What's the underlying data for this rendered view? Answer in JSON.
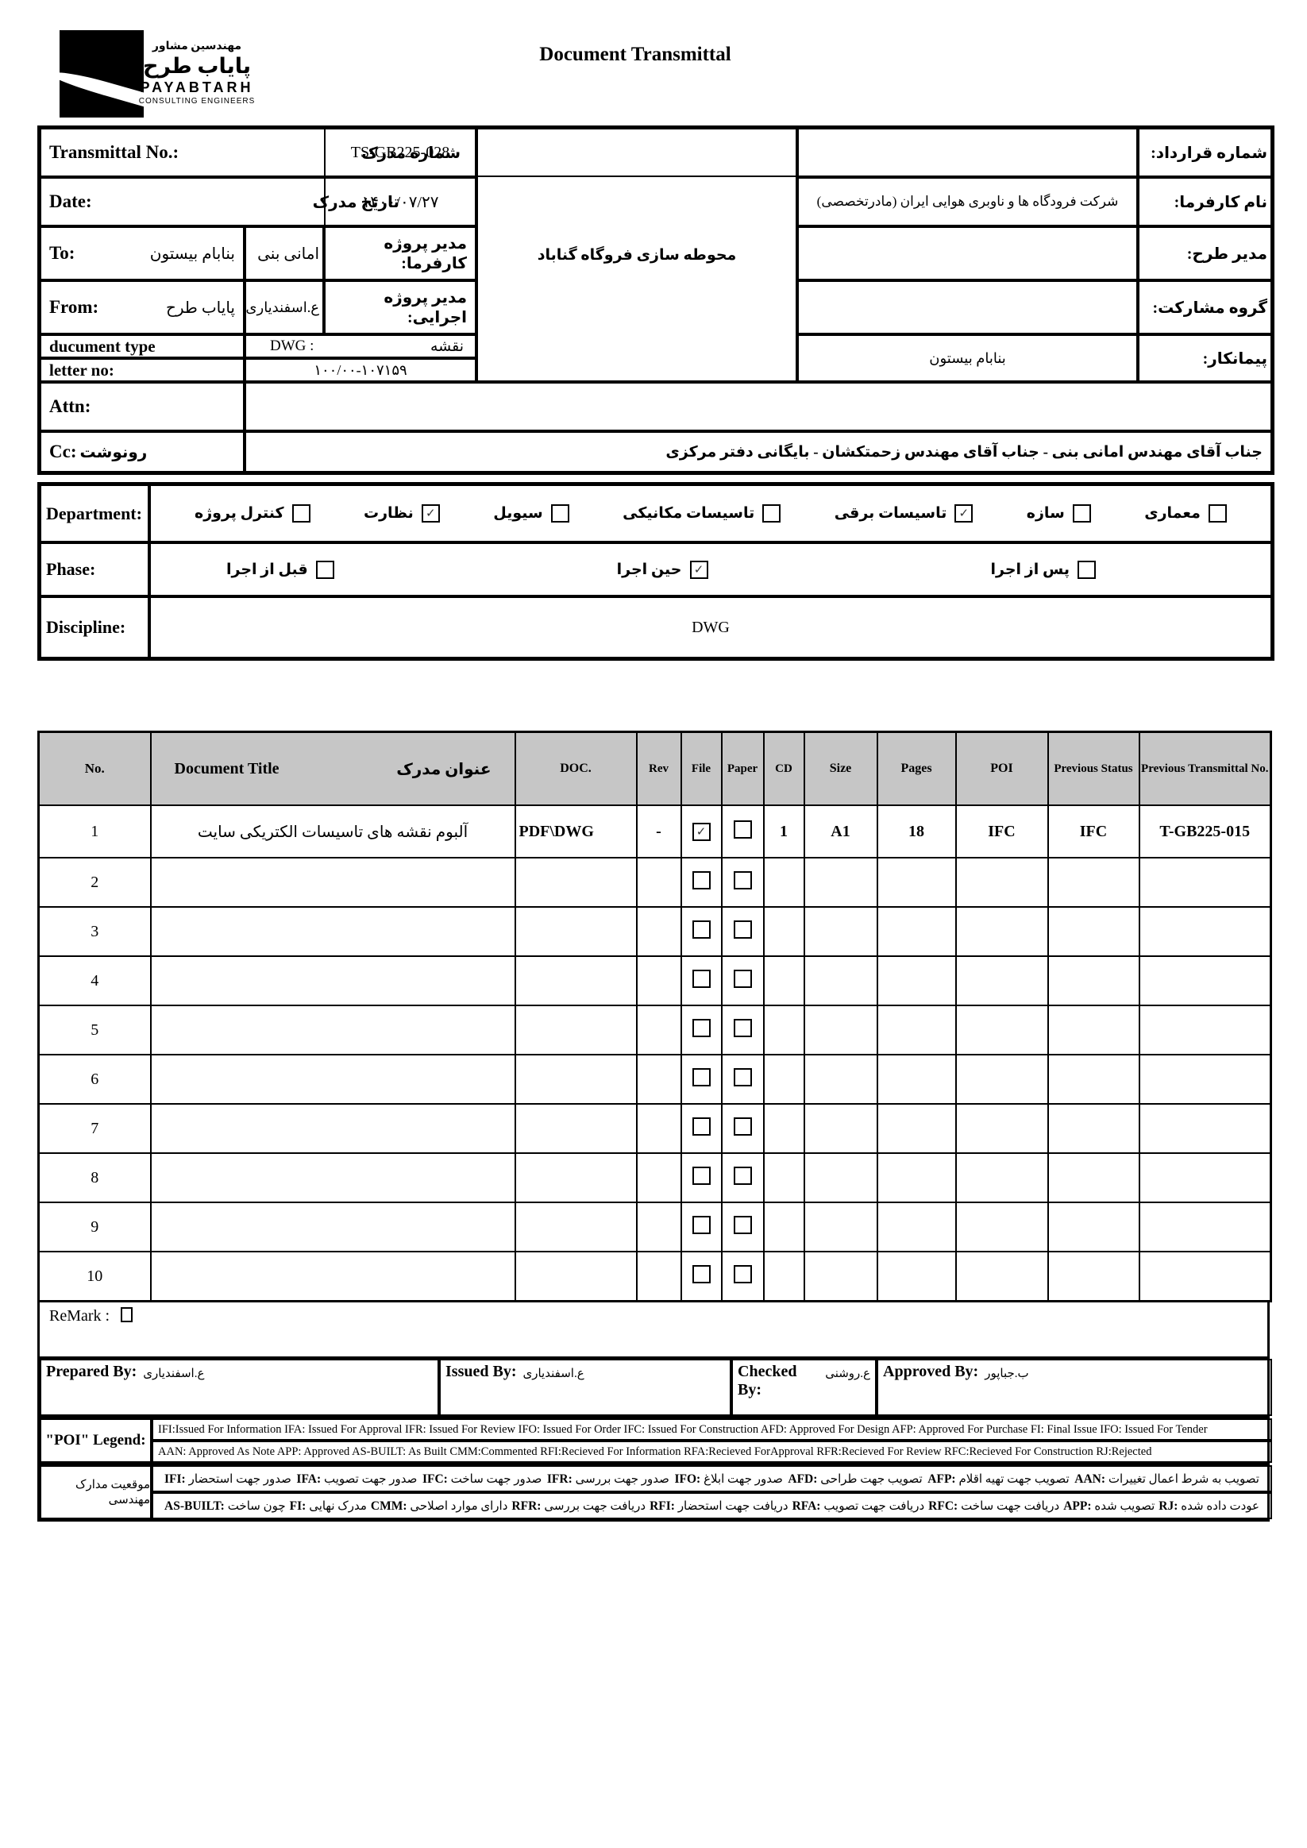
{
  "logo": {
    "fa_small": "مهندسین مشاور",
    "fa_big": "پایاب طرح",
    "en_big": "PAYABTARH",
    "en_small": "CONSULTING ENGINEERS"
  },
  "title": "Document Transmittal",
  "info": {
    "transmittal": {
      "label_en": "Transmittal No.:",
      "label_fa": "شماره مدرک",
      "value": "TS-GB225-028"
    },
    "date": {
      "label_en": "Date:",
      "label_fa": "تاریخ  مدرک",
      "value": "۱۴۰۰/۰۷/۲۷"
    },
    "to": {
      "label": "To:",
      "company": "بنابام بیستون",
      "person": "امانی بنی",
      "role_label": "مدیر پروژه کارفرما:"
    },
    "from": {
      "label": "From:",
      "company": "پایاب طرح",
      "person": "ع.اسفندیاری",
      "role_label": "مدیر پروژه اجرایی:"
    },
    "document_type": {
      "label": "ducument type",
      "value_latin": "DWG  :",
      "value_fa": "نقشه"
    },
    "letter_no": {
      "label": "letter no:",
      "value": "۱۰۰/۰۰-۱۰۷۱۵۹"
    },
    "attn": {
      "label": "Attn:",
      "value": ""
    },
    "cc": {
      "label_en": "Cc:",
      "label_fa": "رونوشت",
      "value": "جناب آقای مهندس امانی بنی  - جناب آقای مهندس زحمتکشان - بایگانی دفتر مرکزی"
    },
    "project": "محوطه سازی فروگاه گناباد",
    "contract": {
      "label": "شماره قرارداد:",
      "value": ""
    },
    "client": {
      "label": "نام کارفرما:",
      "value": "شرکت فرودگاه ها و ناوبری هوایی ایران (مادرتخصصی)"
    },
    "design_manager": {
      "label": "مدیر طرح:",
      "value": ""
    },
    "jv_group": {
      "label": "گروه مشارکت:",
      "value": ""
    },
    "contractor": {
      "label": "پیمانکار:",
      "value": "بنابام بیستون"
    }
  },
  "classification": {
    "department": {
      "label": "Department:",
      "options": [
        {
          "label": "کنترل پروژه",
          "checked": false
        },
        {
          "label": "نظارت",
          "checked": true
        },
        {
          "label": "سیویل",
          "checked": false
        },
        {
          "label": "تاسیسات مکانیکی",
          "checked": false
        },
        {
          "label": "تاسیسات برقی",
          "checked": true
        },
        {
          "label": "سازه",
          "checked": false
        },
        {
          "label": "معماری",
          "checked": false
        }
      ]
    },
    "phase": {
      "label": "Phase:",
      "options": [
        {
          "label": "قبل از اجرا",
          "checked": false
        },
        {
          "label": "حین اجرا",
          "checked": true
        },
        {
          "label": "پس از اجرا",
          "checked": false
        }
      ]
    },
    "discipline": {
      "label": "Discipline:",
      "value": "DWG"
    }
  },
  "doc_table": {
    "header": {
      "no": "No.",
      "title_en": "Document Title",
      "title_fa": "عنوان مدرک",
      "doc": "DOC.",
      "rev": "Rev",
      "file": "File",
      "paper": "Paper",
      "cd": "CD",
      "size": "Size",
      "pages": "Pages",
      "poi": "POI",
      "prev_status": "Previous Status",
      "prev_transmittal": "Previous Transmittal No."
    },
    "rows": [
      {
        "no": "1",
        "title": "آلبوم نقشه های تاسیسات الکتریکی سایت",
        "doc": "PDF\\DWG",
        "rev": "-",
        "file_checked": true,
        "paper_checked": false,
        "cd": "1",
        "size": "A1",
        "pages": "18",
        "poi": "IFC",
        "prev_status": "IFC",
        "prev_transmittal": "T-GB225-015"
      },
      {
        "no": "2",
        "title": "",
        "doc": "",
        "rev": "",
        "file_checked": false,
        "paper_checked": false,
        "cd": "",
        "size": "",
        "pages": "",
        "poi": "",
        "prev_status": "",
        "prev_transmittal": ""
      },
      {
        "no": "3",
        "title": "",
        "doc": "",
        "rev": "",
        "file_checked": false,
        "paper_checked": false,
        "cd": "",
        "size": "",
        "pages": "",
        "poi": "",
        "prev_status": "",
        "prev_transmittal": ""
      },
      {
        "no": "4",
        "title": "",
        "doc": "",
        "rev": "",
        "file_checked": false,
        "paper_checked": false,
        "cd": "",
        "size": "",
        "pages": "",
        "poi": "",
        "prev_status": "",
        "prev_transmittal": ""
      },
      {
        "no": "5",
        "title": "",
        "doc": "",
        "rev": "",
        "file_checked": false,
        "paper_checked": false,
        "cd": "",
        "size": "",
        "pages": "",
        "poi": "",
        "prev_status": "",
        "prev_transmittal": ""
      },
      {
        "no": "6",
        "title": "",
        "doc": "",
        "rev": "",
        "file_checked": false,
        "paper_checked": false,
        "cd": "",
        "size": "",
        "pages": "",
        "poi": "",
        "prev_status": "",
        "prev_transmittal": ""
      },
      {
        "no": "7",
        "title": "",
        "doc": "",
        "rev": "",
        "file_checked": false,
        "paper_checked": false,
        "cd": "",
        "size": "",
        "pages": "",
        "poi": "",
        "prev_status": "",
        "prev_transmittal": ""
      },
      {
        "no": "8",
        "title": "",
        "doc": "",
        "rev": "",
        "file_checked": false,
        "paper_checked": false,
        "cd": "",
        "size": "",
        "pages": "",
        "poi": "",
        "prev_status": "",
        "prev_transmittal": ""
      },
      {
        "no": "9",
        "title": "",
        "doc": "",
        "rev": "",
        "file_checked": false,
        "paper_checked": false,
        "cd": "",
        "size": "",
        "pages": "",
        "poi": "",
        "prev_status": "",
        "prev_transmittal": ""
      },
      {
        "no": "10",
        "title": "",
        "doc": "",
        "rev": "",
        "file_checked": false,
        "paper_checked": false,
        "cd": "",
        "size": "",
        "pages": "",
        "poi": "",
        "prev_status": "",
        "prev_transmittal": ""
      }
    ]
  },
  "remark_label": "ReMark :",
  "signatures": {
    "prepared": {
      "label": "Prepared By:",
      "value": "ع.اسفندیاری"
    },
    "issued": {
      "label": "Issued By:",
      "value": "ع.اسفندیاری"
    },
    "checked": {
      "label": "Checked By:",
      "value": "ع.روشنی"
    },
    "approved": {
      "label": "Approved By:",
      "value": "ب.جباپور"
    }
  },
  "poi_legend": {
    "label": "\"POI\" Legend:",
    "line1": "IFI:Issued For Information  IFA: Issued For Approval  IFR: Issued For Review   IFO: Issued For Order  IFC: Issued For Construction AFD: Approved For Design AFP: Approved For Purchase  FI: Final Issue  IFO: Issued For Tender",
    "line2": "AAN: Approved As Note  APP: Approved  AS-BUILT: As Built CMM:Commented  RFI:Recieved For Information   RFA:Recieved ForApproval   RFR:Recieved For Review  RFC:Recieved For Construction  RJ:Rejected"
  },
  "fa_legend": {
    "label": "موقعیت مدارک مهندسی",
    "row1": [
      {
        "abbr": "IFI",
        "text": "صدور جهت استحضار"
      },
      {
        "abbr": "IFA",
        "text": "صدور جهت تصویب"
      },
      {
        "abbr": "IFC",
        "text": "صدور جهت ساخت"
      },
      {
        "abbr": "IFR",
        "text": "صدور جهت بررسی"
      },
      {
        "abbr": "IFO",
        "text": "صدور جهت ابلاغ"
      },
      {
        "abbr": "AFD",
        "text": "تصویب جهت طراحی"
      },
      {
        "abbr": "AFP",
        "text": "تصویب جهت تهیه اقلام"
      },
      {
        "abbr": "AAN",
        "text": "تصویب به شرط اعمال تغییرات"
      }
    ],
    "row2": [
      {
        "abbr": "AS-BUILT",
        "text": "چون ساخت"
      },
      {
        "abbr": "FI",
        "text": "مدرک نهایی"
      },
      {
        "abbr": "CMM",
        "text": "دارای موارد اصلاحی"
      },
      {
        "abbr": "RFR",
        "text": "دریافت جهت بررسی"
      },
      {
        "abbr": "RFI",
        "text": "دریافت جهت استحضار"
      },
      {
        "abbr": "RFA",
        "text": "دریافت جهت تصویب"
      },
      {
        "abbr": "RFC",
        "text": "دریافت جهت ساخت"
      },
      {
        "abbr": "APP",
        "text": "تصویب شده"
      },
      {
        "abbr": "RJ",
        "text": "عودت داده شده"
      }
    ]
  }
}
